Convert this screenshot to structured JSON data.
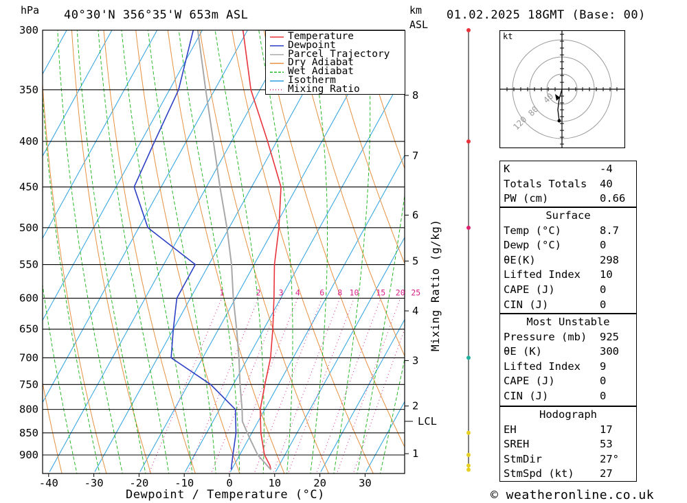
{
  "header": {
    "pressure_unit": "hPa",
    "location": "40°30'N  356°35'W  653m  ASL",
    "height_unit_km": "km",
    "height_unit_asl": "ASL",
    "datetime": "01.02.2025  18GMT  (Base: 00)"
  },
  "axes": {
    "xlabel": "Dewpoint / Temperature (°C)",
    "mixing_ratio_label": "Mixing Ratio (g/kg)",
    "x_ticks": [
      "-40",
      "-30",
      "-20",
      "-10",
      "0",
      "10",
      "20",
      "30"
    ],
    "pressure_ticks": [
      "300",
      "350",
      "400",
      "450",
      "500",
      "550",
      "600",
      "650",
      "700",
      "750",
      "800",
      "850",
      "900"
    ],
    "km_ticks": [
      "8",
      "7",
      "6",
      "5",
      "4",
      "3",
      "2",
      "1"
    ],
    "lcl_label": "LCL",
    "mixing_ratio_values": [
      "1",
      "2",
      "3",
      "4",
      "6",
      "8",
      "10",
      "15",
      "20",
      "25"
    ]
  },
  "legend": {
    "items": [
      {
        "label": "Temperature",
        "color": "#e8333a",
        "style": "solid"
      },
      {
        "label": "Dewpoint",
        "color": "#2b3fc4",
        "style": "solid"
      },
      {
        "label": "Parcel Trajectory",
        "color": "#a8a8a8",
        "style": "solid"
      },
      {
        "label": "Dry Adiabat",
        "color": "#e69040",
        "style": "solid"
      },
      {
        "label": "Wet Adiabat",
        "color": "#28b828",
        "style": "dashed"
      },
      {
        "label": "Isotherm",
        "color": "#2aa0e0",
        "style": "solid"
      },
      {
        "label": "Mixing Ratio",
        "color": "#d8208a",
        "style": "dotted"
      }
    ]
  },
  "chart_data": {
    "type": "line",
    "title": "40°30'N  356°35'W  653m  ASL",
    "xlabel": "Dewpoint / Temperature (°C)",
    "ylabel": "hPa",
    "x_range": [
      -42,
      39
    ],
    "p_range": [
      935,
      300
    ],
    "y_scale": "log-pressure",
    "series": [
      {
        "name": "Temperature",
        "color": "#e8333a",
        "points": [
          [
            935,
            8.7
          ],
          [
            925,
            8.0
          ],
          [
            900,
            5.5
          ],
          [
            850,
            2.0
          ],
          [
            800,
            -1.0
          ],
          [
            750,
            -3.0
          ],
          [
            700,
            -5.0
          ],
          [
            650,
            -8.0
          ],
          [
            600,
            -11.5
          ],
          [
            550,
            -15.5
          ],
          [
            500,
            -19.0
          ],
          [
            450,
            -23.5
          ],
          [
            400,
            -32.0
          ],
          [
            350,
            -42.0
          ],
          [
            300,
            -51.0
          ]
        ]
      },
      {
        "name": "Dewpoint",
        "color": "#2b3fc4",
        "points": [
          [
            935,
            0.0
          ],
          [
            925,
            -0.5
          ],
          [
            900,
            -1.5
          ],
          [
            850,
            -3.5
          ],
          [
            800,
            -6.5
          ],
          [
            750,
            -15.0
          ],
          [
            700,
            -27.0
          ],
          [
            650,
            -30.0
          ],
          [
            600,
            -33.0
          ],
          [
            550,
            -33.0
          ],
          [
            500,
            -48.0
          ],
          [
            450,
            -56.0
          ],
          [
            400,
            -57.0
          ],
          [
            350,
            -58.0
          ],
          [
            300,
            -62.0
          ]
        ]
      },
      {
        "name": "Parcel Trajectory",
        "color": "#a8a8a8",
        "points": [
          [
            935,
            8.7
          ],
          [
            900,
            4.0
          ],
          [
            860,
            0.0
          ],
          [
            825,
            -3.5
          ],
          [
            800,
            -5.0
          ],
          [
            750,
            -8.5
          ],
          [
            700,
            -12.0
          ],
          [
            650,
            -16.0
          ],
          [
            600,
            -20.5
          ],
          [
            550,
            -25.0
          ],
          [
            500,
            -30.5
          ],
          [
            450,
            -37.0
          ],
          [
            400,
            -44.0
          ],
          [
            350,
            -52.0
          ],
          [
            300,
            -61.0
          ]
        ]
      }
    ],
    "isotherms_c": [
      -110,
      -100,
      -90,
      -80,
      -70,
      -60,
      -50,
      -40,
      -30,
      -20,
      -10,
      0,
      10,
      20,
      30,
      40
    ],
    "dry_adiabats_theta_k": [
      240,
      250,
      260,
      270,
      280,
      290,
      300,
      310,
      320,
      330,
      340,
      350,
      360,
      370,
      380,
      390,
      400,
      410,
      420,
      430,
      440
    ],
    "wet_adiabats_theta_c": [
      -30,
      -25,
      -20,
      -15,
      -10,
      -5,
      0,
      5,
      10,
      15,
      20,
      25,
      30,
      35
    ],
    "mixing_ratios_gkg": [
      1,
      2,
      3,
      4,
      6,
      8,
      10,
      15,
      20,
      25
    ],
    "km_levels": [
      [
        8,
        355
      ],
      [
        7,
        415
      ],
      [
        6,
        484
      ],
      [
        5,
        545
      ],
      [
        4,
        620
      ],
      [
        3,
        705
      ],
      [
        2,
        793
      ],
      [
        1,
        897
      ]
    ],
    "lcl_hpa": 825,
    "wind_levels_hpa": [
      300,
      400,
      500,
      700,
      850,
      900,
      925,
      935
    ],
    "hodograph_rings_kt": [
      "40",
      "80",
      "120"
    ]
  },
  "hodograph": {
    "unit": "kt",
    "ring_labels": [
      "40",
      "80",
      "120"
    ]
  },
  "indices": {
    "general": [
      {
        "k": "K",
        "v": "-4"
      },
      {
        "k": "Totals Totals",
        "v": "40"
      },
      {
        "k": "PW (cm)",
        "v": "0.66"
      }
    ],
    "surface_title": "Surface",
    "surface": [
      {
        "k": "Temp (°C)",
        "v": "8.7"
      },
      {
        "k": "Dewp (°C)",
        "v": "0"
      },
      {
        "k": "θE(K)",
        "v": "298"
      },
      {
        "k": "Lifted Index",
        "v": "10"
      },
      {
        "k": "CAPE (J)",
        "v": "0"
      },
      {
        "k": "CIN (J)",
        "v": "0"
      }
    ],
    "mu_title": "Most Unstable",
    "mu": [
      {
        "k": "Pressure (mb)",
        "v": "925"
      },
      {
        "k": "θE (K)",
        "v": "300"
      },
      {
        "k": "Lifted Index",
        "v": "9"
      },
      {
        "k": "CAPE (J)",
        "v": "0"
      },
      {
        "k": "CIN (J)",
        "v": "0"
      }
    ],
    "hodo_title": "Hodograph",
    "hodo": [
      {
        "k": "EH",
        "v": "17"
      },
      {
        "k": "SREH",
        "v": "53"
      },
      {
        "k": "StmDir",
        "v": "27°"
      },
      {
        "k": "StmSpd (kt)",
        "v": "27"
      }
    ]
  },
  "footer": {
    "copyright": "© weatheronline.co.uk"
  }
}
